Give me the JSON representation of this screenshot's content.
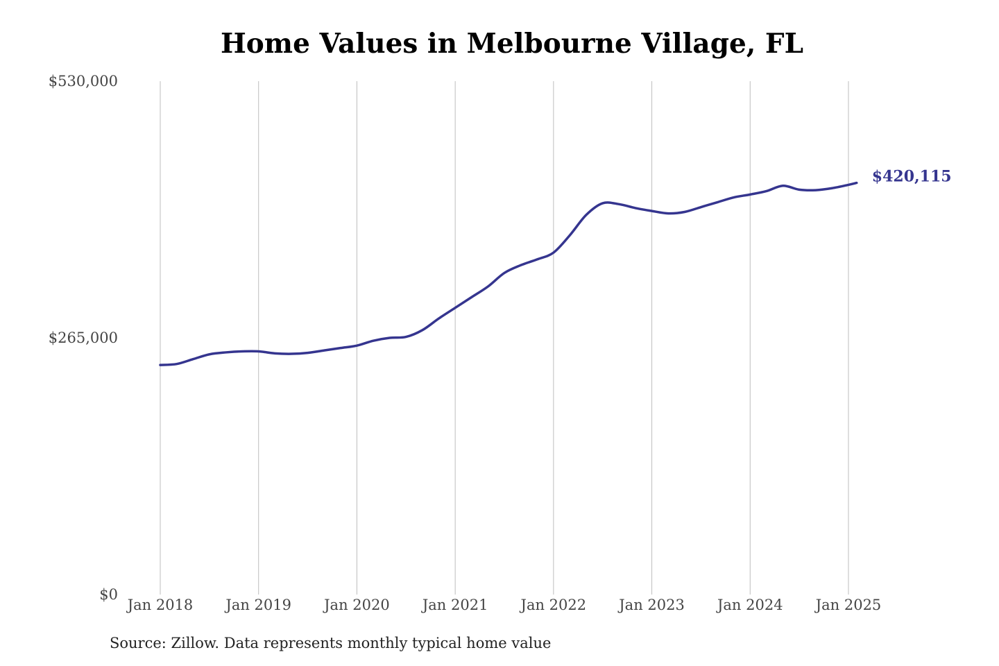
{
  "chart_data": {
    "type": "line",
    "title": "Home Values in Melbourne Village, FL",
    "xlabel": "",
    "ylabel": "",
    "source": "Source: Zillow. Data represents monthly typical home value",
    "ylim": [
      0,
      530000
    ],
    "y_ticks": [
      {
        "value": 0,
        "label": "$0"
      },
      {
        "value": 265000,
        "label": "$265,000"
      },
      {
        "value": 530000,
        "label": "$530,000"
      }
    ],
    "x_ticks": [
      {
        "value": "2018-01",
        "label": "Jan 2018"
      },
      {
        "value": "2019-01",
        "label": "Jan 2019"
      },
      {
        "value": "2020-01",
        "label": "Jan 2020"
      },
      {
        "value": "2021-01",
        "label": "Jan 2021"
      },
      {
        "value": "2022-01",
        "label": "Jan 2022"
      },
      {
        "value": "2023-01",
        "label": "Jan 2023"
      },
      {
        "value": "2024-01",
        "label": "Jan 2024"
      },
      {
        "value": "2025-01",
        "label": "Jan 2025"
      }
    ],
    "xlim": [
      "2018-01",
      "2025-01"
    ],
    "grid": {
      "vertical": true,
      "horizontal": false
    },
    "line_color": "#35358f",
    "end_label": "$420,115",
    "series": [
      {
        "x": [
          "2018-01",
          "2018-03",
          "2018-05",
          "2018-07",
          "2018-09",
          "2018-11",
          "2019-01",
          "2019-03",
          "2019-05",
          "2019-07",
          "2019-09",
          "2019-11",
          "2020-01",
          "2020-03",
          "2020-05",
          "2020-07",
          "2020-09",
          "2020-11",
          "2021-01",
          "2021-03",
          "2021-05",
          "2021-07",
          "2021-09",
          "2021-11",
          "2022-01",
          "2022-03",
          "2022-05",
          "2022-07",
          "2022-09",
          "2022-11",
          "2023-01",
          "2023-03",
          "2023-05",
          "2023-07",
          "2023-09",
          "2023-11",
          "2024-01",
          "2024-03",
          "2024-05",
          "2024-07",
          "2024-09",
          "2024-11",
          "2025-01",
          "2025-02"
        ],
        "values": [
          237000,
          238000,
          243000,
          248000,
          250000,
          251000,
          251000,
          249000,
          248500,
          249500,
          252000,
          254500,
          257000,
          262000,
          265000,
          266000,
          273000,
          285000,
          296000,
          307000,
          318000,
          332000,
          340000,
          346000,
          353000,
          371000,
          392000,
          404000,
          403000,
          399000,
          396000,
          393500,
          395000,
          400000,
          405000,
          410000,
          413000,
          416500,
          422000,
          418000,
          417500,
          419500,
          423000,
          425000
        ]
      }
    ]
  }
}
